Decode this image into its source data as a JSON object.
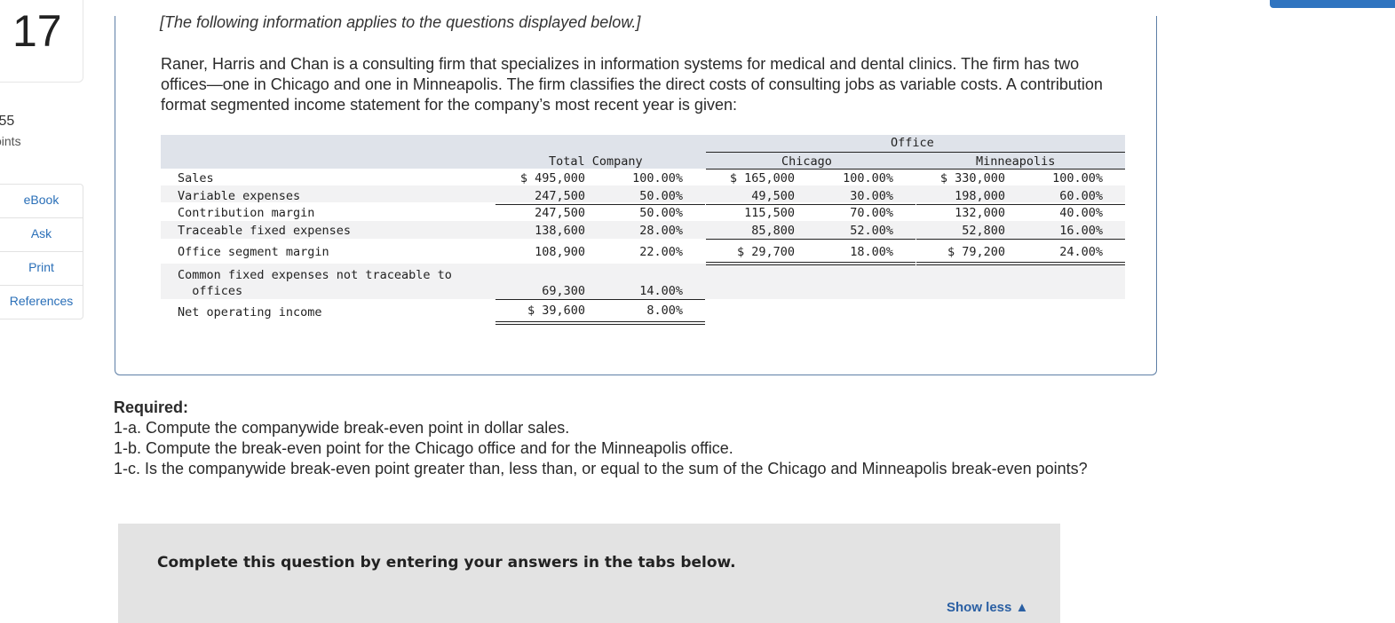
{
  "question": {
    "number": "17",
    "points_value": ".55",
    "points_label": "oints"
  },
  "side_nav": [
    "eBook",
    "Ask",
    "Print",
    "References"
  ],
  "intro": {
    "note": "[The following information applies to the questions displayed below.]",
    "paragraph": "Raner, Harris and Chan is a consulting firm that specializes in information systems for medical and dental clinics. The firm has two offices—one in Chicago and one in Minneapolis. The firm classifies the direct costs of consulting jobs as variable costs. A contribution format segmented income statement for the company’s most recent year is given:"
  },
  "table": {
    "office_header": "Office",
    "col_total": "Total Company",
    "col_chicago": "Chicago",
    "col_minneapolis": "Minneapolis",
    "rows": [
      {
        "label": "Sales",
        "t": "$ 495,000",
        "tp": "100.00%",
        "c": "$ 165,000",
        "cp": "100.00%",
        "m": "$ 330,000",
        "mp": "100.00%"
      },
      {
        "label": "Variable expenses",
        "t": "247,500",
        "tp": "50.00%",
        "c": "49,500",
        "cp": "30.00%",
        "m": "198,000",
        "mp": "60.00%"
      },
      {
        "label": "Contribution margin",
        "t": "247,500",
        "tp": "50.00%",
        "c": "115,500",
        "cp": "70.00%",
        "m": "132,000",
        "mp": "40.00%"
      },
      {
        "label": "Traceable fixed expenses",
        "t": "138,600",
        "tp": "28.00%",
        "c": "85,800",
        "cp": "52.00%",
        "m": "52,800",
        "mp": "16.00%"
      },
      {
        "label": "Office segment margin",
        "t": "108,900",
        "tp": "22.00%",
        "c": "$ 29,700",
        "cp": "18.00%",
        "m": "$ 79,200",
        "mp": "24.00%"
      }
    ],
    "common_label_1": "Common fixed expenses not traceable to",
    "common_label_2": "  offices",
    "common_t": "69,300",
    "common_tp": "14.00%",
    "noi_label": "Net operating income",
    "noi_t": "$ 39,600",
    "noi_tp": "8.00%"
  },
  "required": {
    "heading": "Required:",
    "items": [
      "1-a. Compute the companywide break-even point in dollar sales.",
      "1-b. Compute the break-even point for the Chicago office and for the Minneapolis office.",
      "1-c. Is the companywide break-even point greater than, less than, or equal to the sum of the Chicago and Minneapolis break-even points?"
    ]
  },
  "tabs_box": {
    "instruction": "Complete this question by entering your answers in the tabs below.",
    "show_less": "Show less ▲"
  }
}
